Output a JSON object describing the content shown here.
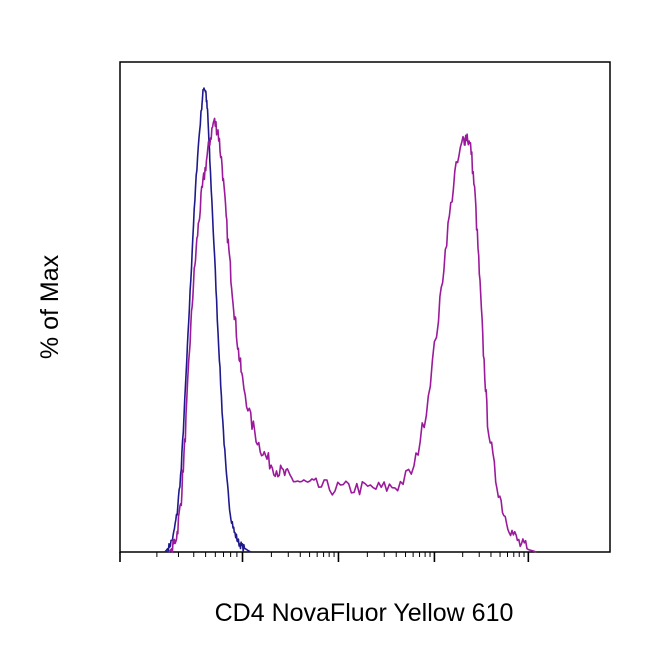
{
  "chart_data": {
    "type": "line",
    "title": "",
    "xlabel": "CD4 NovaFluor Yellow 610",
    "ylabel": "% of Max",
    "x_scale": "log",
    "xlim": [
      0,
      120
    ],
    "ylim": [
      0,
      100
    ],
    "grid": false,
    "legend": "none",
    "series": [
      {
        "color": "#1f1a8c",
        "x": [
          11,
          12,
          13,
          14,
          15,
          16,
          17,
          18,
          19,
          20,
          20.5,
          21,
          21.5,
          22,
          23,
          24,
          25,
          26,
          27,
          28,
          29,
          30,
          31,
          32
        ],
        "y": [
          0,
          1,
          3,
          8,
          17,
          33,
          50,
          67,
          81,
          91,
          95,
          94,
          89,
          80,
          63,
          45,
          29,
          16,
          8,
          4,
          2,
          1,
          0.5,
          0
        ]
      },
      {
        "color": "#9b1a9b",
        "x": [
          12,
          13,
          14,
          15,
          16,
          17,
          18,
          19,
          20,
          21,
          22,
          23,
          24,
          25,
          26,
          27,
          28,
          29,
          30,
          32,
          34,
          36,
          38,
          40,
          42,
          45,
          48,
          52,
          56,
          60,
          64,
          68,
          72,
          75,
          78,
          80,
          82,
          84,
          85,
          86,
          87,
          88,
          89,
          90,
          92,
          94,
          96,
          98,
          100,
          102
        ],
        "y": [
          0,
          1,
          4,
          11,
          24,
          41,
          55,
          65,
          73,
          79,
          84,
          88,
          86,
          79,
          68,
          58,
          49,
          41,
          35,
          27,
          22,
          19,
          17,
          16,
          15,
          14,
          13.5,
          13,
          13,
          13,
          13,
          13.5,
          17,
          29,
          48,
          64,
          77,
          84,
          85,
          82,
          72,
          57,
          41,
          27,
          15,
          8,
          4,
          1.5,
          0.5,
          0
        ]
      }
    ]
  }
}
